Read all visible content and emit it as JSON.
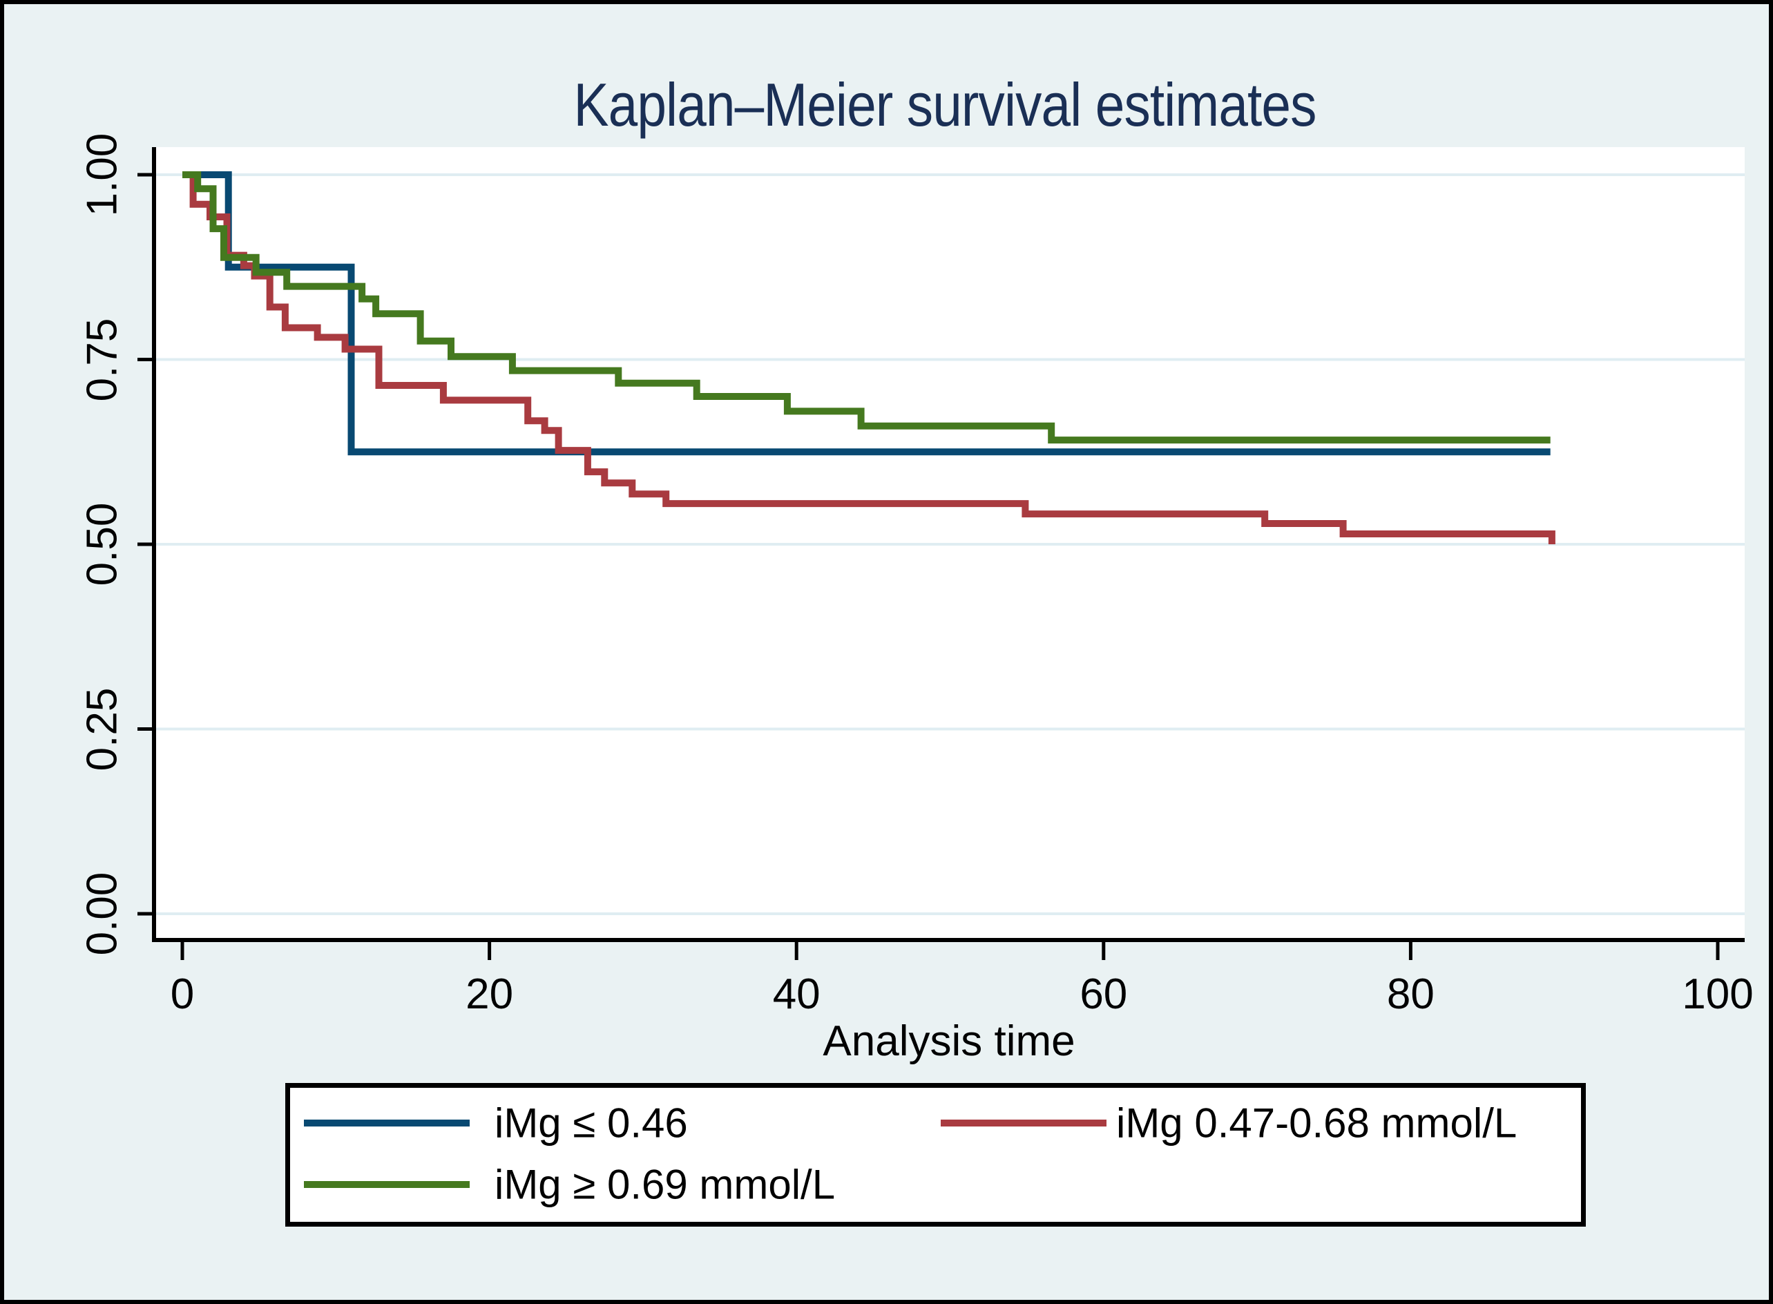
{
  "figure": {
    "background": "#eaf2f3",
    "plot_background": "#ffffff",
    "gridline_color": "#dfedf2",
    "axis_color": "#000000",
    "title_color": "#1a2f55"
  },
  "chart_data": {
    "type": "line",
    "subtype": "kaplan-meier-step",
    "title": "Kaplan–Meier survival estimates",
    "xlabel": "Analysis time",
    "ylabel": "",
    "xlim": [
      -1.85,
      101.8
    ],
    "ylim": [
      -0.045,
      1.04
    ],
    "grid": "horizontal",
    "legend_position": "bottom",
    "xticks": [
      0,
      20,
      40,
      60,
      80,
      100
    ],
    "xtick_labels": [
      "0",
      "20",
      "40",
      "60",
      "80",
      "100"
    ],
    "yticks": [
      0,
      0.25,
      0.5,
      0.75,
      1.0
    ],
    "ytick_labels": [
      "0.00",
      "0.25",
      "0.50",
      "0.75",
      "1.00"
    ],
    "series": [
      {
        "name": "iMg ≤ 0.46",
        "color": "#084972",
        "points": [
          [
            0,
            1.0
          ],
          [
            3,
            0.875
          ],
          [
            11,
            0.625
          ],
          [
            89.1,
            0.625
          ]
        ]
      },
      {
        "name": "iMg 0.47-0.68 mmol/L",
        "color": "#a93b40",
        "points": [
          [
            0,
            1.0
          ],
          [
            0.7,
            0.96
          ],
          [
            1.8,
            0.943
          ],
          [
            2.9,
            0.891
          ],
          [
            4.0,
            0.877
          ],
          [
            4.7,
            0.863
          ],
          [
            5.7,
            0.821
          ],
          [
            6.7,
            0.793
          ],
          [
            8.8,
            0.78
          ],
          [
            10.6,
            0.764
          ],
          [
            12.8,
            0.715
          ],
          [
            17.0,
            0.695
          ],
          [
            22.5,
            0.667
          ],
          [
            23.6,
            0.654
          ],
          [
            24.5,
            0.627
          ],
          [
            26.4,
            0.598
          ],
          [
            27.5,
            0.583
          ],
          [
            29.3,
            0.568
          ],
          [
            31.5,
            0.555
          ],
          [
            54.9,
            0.541
          ],
          [
            70.5,
            0.528
          ],
          [
            75.6,
            0.514
          ],
          [
            89.2,
            0.5
          ]
        ]
      },
      {
        "name": "iMg ≥ 0.69 mmol/L",
        "color": "#45791f",
        "points": [
          [
            0,
            1.0
          ],
          [
            1,
            0.981
          ],
          [
            2,
            0.927
          ],
          [
            2.7,
            0.888
          ],
          [
            4.8,
            0.868
          ],
          [
            6.8,
            0.849
          ],
          [
            11.7,
            0.832
          ],
          [
            12.6,
            0.812
          ],
          [
            15.5,
            0.775
          ],
          [
            17.5,
            0.754
          ],
          [
            21.5,
            0.735
          ],
          [
            28.4,
            0.718
          ],
          [
            33.5,
            0.7
          ],
          [
            39.4,
            0.68
          ],
          [
            44.2,
            0.66
          ],
          [
            56.6,
            0.641
          ],
          [
            89.1,
            0.641
          ]
        ]
      }
    ]
  },
  "legend": {
    "rows": [
      [
        "iMg ≤ 0.46",
        "iMg 0.47-0.68 mmol/L"
      ],
      [
        "iMg ≥ 0.69 mmol/L"
      ]
    ]
  }
}
